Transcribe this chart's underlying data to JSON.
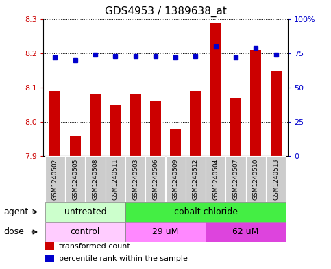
{
  "title": "GDS4953 / 1389638_at",
  "samples": [
    "GSM1240502",
    "GSM1240505",
    "GSM1240508",
    "GSM1240511",
    "GSM1240503",
    "GSM1240506",
    "GSM1240509",
    "GSM1240512",
    "GSM1240504",
    "GSM1240507",
    "GSM1240510",
    "GSM1240513"
  ],
  "bar_values": [
    8.09,
    7.96,
    8.08,
    8.05,
    8.08,
    8.06,
    7.98,
    8.09,
    8.29,
    8.07,
    8.21,
    8.15
  ],
  "dot_values": [
    72,
    70,
    74,
    73,
    73,
    73,
    72,
    73,
    80,
    72,
    79,
    74
  ],
  "ylim": [
    7.9,
    8.3
  ],
  "yticks": [
    7.9,
    8.0,
    8.1,
    8.2,
    8.3
  ],
  "y2lim": [
    0,
    100
  ],
  "y2ticks": [
    0,
    25,
    50,
    75,
    100
  ],
  "y2ticklabels": [
    "0",
    "25",
    "50",
    "75",
    "100%"
  ],
  "bar_color": "#cc0000",
  "dot_color": "#0000cc",
  "agent_groups": [
    {
      "label": "untreated",
      "start": 0,
      "end": 4,
      "color": "#ccffcc"
    },
    {
      "label": "cobalt chloride",
      "start": 4,
      "end": 12,
      "color": "#44ee44"
    }
  ],
  "dose_groups": [
    {
      "label": "control",
      "start": 0,
      "end": 4,
      "color": "#ffccff"
    },
    {
      "label": "29 uM",
      "start": 4,
      "end": 8,
      "color": "#ff88ff"
    },
    {
      "label": "62 uM",
      "start": 8,
      "end": 12,
      "color": "#dd44dd"
    }
  ],
  "legend_bar_label": "transformed count",
  "legend_dot_label": "percentile rank within the sample",
  "xlabel_agent": "agent",
  "xlabel_dose": "dose",
  "bar_width": 0.55,
  "tick_fontsize": 8,
  "label_fontsize": 9,
  "title_fontsize": 11,
  "grid_color": "black",
  "ytick_color": "#cc0000",
  "y2tick_color": "#0000cc",
  "xtick_bg_color": "#cccccc",
  "fig_width": 4.83,
  "fig_height": 3.93,
  "fig_dpi": 100
}
